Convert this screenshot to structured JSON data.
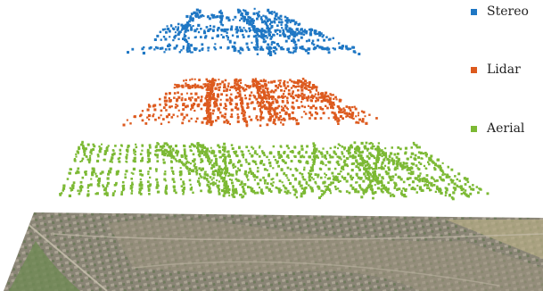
{
  "legend": {
    "items": [
      {
        "label": "Stereo",
        "color": "#1f77c4"
      },
      {
        "label": "Lidar",
        "color": "#dd5a1e"
      },
      {
        "label": "Aerial",
        "color": "#7cb934"
      }
    ]
  },
  "ground_image": {
    "content": "aerial-photo-residential-area"
  }
}
